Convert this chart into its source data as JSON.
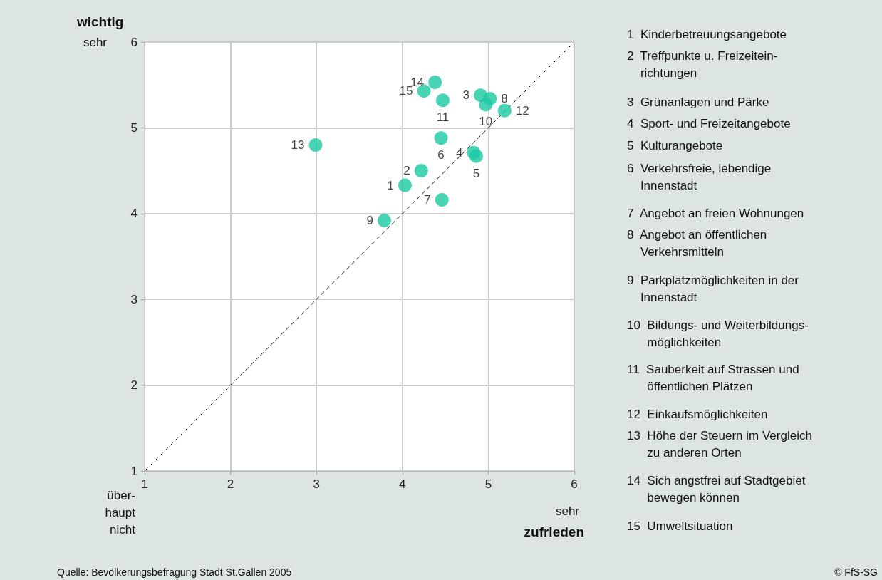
{
  "chart_data": {
    "type": "scatter",
    "xlabel": "zufrieden",
    "ylabel": "wichtig",
    "xlim": [
      1,
      6
    ],
    "ylim": [
      1,
      6
    ],
    "xticks": [
      1,
      2,
      3,
      4,
      5,
      6
    ],
    "yticks": [
      1,
      2,
      3,
      4,
      5,
      6
    ],
    "grid": true,
    "marker": "circle",
    "series": [
      {
        "color": "#19c9a3",
        "x": [
          4.03,
          4.22,
          4.91,
          4.83,
          4.86,
          4.45,
          4.46,
          5.02,
          3.79,
          4.97,
          4.47,
          5.19,
          2.99,
          4.38,
          4.25
        ],
        "values": [
          4.33,
          4.5,
          5.38,
          4.71,
          4.67,
          4.88,
          4.16,
          5.34,
          3.92,
          5.27,
          5.32,
          5.2,
          4.8,
          5.53,
          5.43
        ]
      },
      {
        "type": "line",
        "color": "#000000",
        "line_style": "dashed",
        "marker": "none",
        "x": [
          1,
          6
        ],
        "values": [
          1,
          6
        ]
      }
    ],
    "annotations": [
      "sehr",
      "über-\nhaupt\nnicht",
      "sehr",
      "Quelle: Bevölkerungsbefragung Stadt St.Gallen 2005",
      "© FfS-SG",
      "1  Kinderbetreuungsangebote",
      "2  Treffpunkte u. Freizeitein-\n    richtungen",
      "3  Grünanlagen und Pärke",
      "4  Sport- und Freizeitangebote",
      "5  Kulturangebote",
      "6  Verkehrsfreie, lebendige\n    Innenstadt",
      "7  Angebot an freien Wohnungen",
      "8  Angebot an öffentlichen\n    Verkehrsmitteln",
      "9  Parkplatzmöglichkeiten in der\n    Innenstadt",
      "10  Bildungs- und Weiterbildungs-\n      möglichkeiten",
      "11  Sauberkeit auf Strassen und\n      öffentlichen Plätzen",
      "12  Einkaufsmöglichkeiten",
      "13  Höhe der Steuern im Vergleich\n      zu anderen Orten",
      "14  Sich angstfrei auf Stadtgebiet\n      bewegen können",
      "15  Umweltsituation",
      {
        "text": "1",
        "x": 4.03,
        "y": 4.33
      },
      {
        "text": "2",
        "x": 4.22,
        "y": 4.5
      },
      {
        "text": "3",
        "x": 4.91,
        "y": 5.38
      },
      {
        "text": "4",
        "x": 4.83,
        "y": 4.71
      },
      {
        "text": "5",
        "x": 4.86,
        "y": 4.67
      },
      {
        "text": "6",
        "x": 4.45,
        "y": 4.88
      },
      {
        "text": "7",
        "x": 4.46,
        "y": 4.16
      },
      {
        "text": "8",
        "x": 5.02,
        "y": 5.34
      },
      {
        "text": "9",
        "x": 3.79,
        "y": 3.92
      },
      {
        "text": "10",
        "x": 4.97,
        "y": 5.27
      },
      {
        "text": "11",
        "x": 4.47,
        "y": 5.32
      },
      {
        "text": "12",
        "x": 5.19,
        "y": 5.2
      },
      {
        "text": "13",
        "x": 2.99,
        "y": 4.8
      },
      {
        "text": "14",
        "x": 4.38,
        "y": 5.53
      },
      {
        "text": "15",
        "x": 4.25,
        "y": 5.43
      }
    ]
  }
}
